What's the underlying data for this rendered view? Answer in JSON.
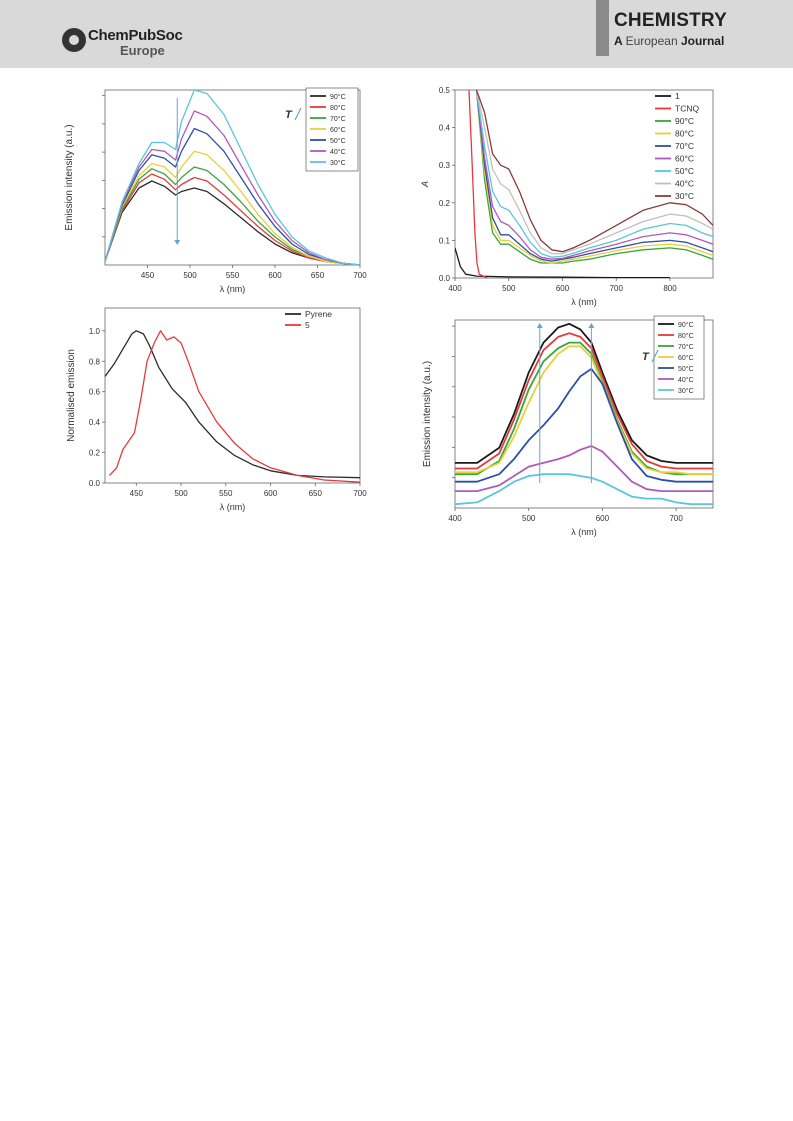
{
  "header": {
    "logo_line1": "ChemPubSoc",
    "logo_line2": "Europe",
    "journal_title": "CHEMISTRY",
    "journal_sub_a": "A",
    "journal_sub_b": "European",
    "journal_sub_c": "Journal"
  },
  "charts": {
    "ylabel_emission": "Emission intensity (a.u.)",
    "ylabel_normalised": "Normalised emission",
    "ylabel_absorbance": "A",
    "xlabel": "λ (nm)",
    "temp_symbol": "T"
  },
  "chart_data": [
    {
      "type": "line",
      "panel": "top-left",
      "ylabel": "Emission intensity (a.u.)",
      "xlabel": "λ (nm)",
      "xlim": [
        400,
        700
      ],
      "xticks": [
        450,
        500,
        550,
        600,
        650,
        700
      ],
      "ylim": [
        0,
        1
      ],
      "legend": "top-right",
      "annotation": "T",
      "x": [
        400,
        420,
        440,
        455,
        470,
        483,
        490,
        505,
        520,
        540,
        560,
        580,
        600,
        620,
        640,
        660,
        680,
        700
      ],
      "series": [
        {
          "name": "90°C",
          "color": "#2b2b2b",
          "values": [
            0.02,
            0.3,
            0.44,
            0.48,
            0.45,
            0.4,
            0.42,
            0.44,
            0.42,
            0.35,
            0.27,
            0.19,
            0.12,
            0.07,
            0.04,
            0.02,
            0.01,
            0.0
          ]
        },
        {
          "name": "80°C",
          "color": "#e63a3a",
          "values": [
            0.02,
            0.31,
            0.47,
            0.52,
            0.49,
            0.43,
            0.46,
            0.5,
            0.48,
            0.4,
            0.31,
            0.22,
            0.14,
            0.08,
            0.04,
            0.02,
            0.01,
            0.0
          ]
        },
        {
          "name": "70°C",
          "color": "#3aa63a",
          "values": [
            0.02,
            0.32,
            0.49,
            0.55,
            0.52,
            0.46,
            0.5,
            0.56,
            0.54,
            0.46,
            0.36,
            0.25,
            0.16,
            0.09,
            0.05,
            0.02,
            0.01,
            0.0
          ]
        },
        {
          "name": "60°C",
          "color": "#e6d13a",
          "values": [
            0.02,
            0.33,
            0.51,
            0.58,
            0.56,
            0.5,
            0.56,
            0.65,
            0.63,
            0.54,
            0.42,
            0.29,
            0.18,
            0.1,
            0.05,
            0.02,
            0.01,
            0.0
          ]
        },
        {
          "name": "50°C",
          "color": "#2e4fa8",
          "values": [
            0.02,
            0.34,
            0.54,
            0.63,
            0.61,
            0.56,
            0.65,
            0.78,
            0.75,
            0.65,
            0.5,
            0.35,
            0.22,
            0.12,
            0.06,
            0.03,
            0.01,
            0.0
          ]
        },
        {
          "name": "40°C",
          "color": "#b05ab8",
          "values": [
            0.02,
            0.35,
            0.56,
            0.66,
            0.65,
            0.6,
            0.72,
            0.88,
            0.85,
            0.74,
            0.57,
            0.4,
            0.25,
            0.14,
            0.07,
            0.03,
            0.01,
            0.0
          ]
        },
        {
          "name": "30°C",
          "color": "#5bc6d8",
          "values": [
            0.02,
            0.36,
            0.58,
            0.7,
            0.7,
            0.66,
            0.82,
            1.0,
            0.98,
            0.86,
            0.66,
            0.46,
            0.29,
            0.16,
            0.08,
            0.04,
            0.01,
            0.0
          ]
        }
      ]
    },
    {
      "type": "line",
      "panel": "top-right",
      "ylabel": "A",
      "xlabel": "λ (nm)",
      "xlim": [
        400,
        880
      ],
      "xticks": [
        400,
        500,
        600,
        700,
        800
      ],
      "ylim": [
        0,
        0.5
      ],
      "yticks": [
        "0.0",
        "0.1",
        "0.2",
        "0.3",
        "0.4",
        "0.5"
      ],
      "legend": "top-right",
      "x": [
        440,
        455,
        470,
        485,
        500,
        520,
        540,
        560,
        580,
        600,
        620,
        650,
        700,
        750,
        800,
        830,
        860,
        880
      ],
      "series": [
        {
          "name": "1",
          "color": "#1a1a1a",
          "x": [
            400,
            410,
            420,
            440,
            500,
            600,
            700,
            800
          ],
          "values": [
            0.08,
            0.03,
            0.01,
            0.005,
            0.003,
            0.002,
            0.001,
            0.001
          ]
        },
        {
          "name": "TCNQ",
          "color": "#e63a3a",
          "x": [
            426,
            432,
            437,
            441,
            445,
            460
          ],
          "values": [
            0.5,
            0.3,
            0.12,
            0.04,
            0.01,
            0.0
          ]
        },
        {
          "name": "90°C",
          "color": "#3aa63a",
          "values": [
            0.5,
            0.26,
            0.12,
            0.09,
            0.09,
            0.07,
            0.05,
            0.04,
            0.04,
            0.04,
            0.045,
            0.05,
            0.065,
            0.075,
            0.08,
            0.075,
            0.06,
            0.05
          ]
        },
        {
          "name": "80°C",
          "color": "#e6d13a",
          "values": [
            0.5,
            0.28,
            0.14,
            0.1,
            0.1,
            0.08,
            0.06,
            0.045,
            0.04,
            0.045,
            0.05,
            0.058,
            0.073,
            0.085,
            0.09,
            0.085,
            0.07,
            0.06
          ]
        },
        {
          "name": "70°C",
          "color": "#2e4fa8",
          "values": [
            0.5,
            0.3,
            0.16,
            0.115,
            0.115,
            0.09,
            0.065,
            0.05,
            0.045,
            0.05,
            0.055,
            0.065,
            0.08,
            0.095,
            0.1,
            0.095,
            0.08,
            0.07
          ]
        },
        {
          "name": "60°C",
          "color": "#b05ab8",
          "values": [
            0.5,
            0.32,
            0.19,
            0.15,
            0.14,
            0.11,
            0.075,
            0.055,
            0.05,
            0.052,
            0.06,
            0.072,
            0.09,
            0.11,
            0.12,
            0.115,
            0.1,
            0.09
          ]
        },
        {
          "name": "50°C",
          "color": "#5bc6d8",
          "values": [
            0.5,
            0.35,
            0.23,
            0.19,
            0.18,
            0.14,
            0.095,
            0.065,
            0.055,
            0.058,
            0.066,
            0.08,
            0.1,
            0.13,
            0.145,
            0.14,
            0.12,
            0.11
          ]
        },
        {
          "name": "40°C",
          "color": "#c0c0c0",
          "values": [
            0.5,
            0.4,
            0.29,
            0.25,
            0.235,
            0.18,
            0.12,
            0.08,
            0.065,
            0.065,
            0.075,
            0.09,
            0.12,
            0.15,
            0.17,
            0.165,
            0.145,
            0.13
          ]
        },
        {
          "name": "30°C",
          "color": "#8b3a3a",
          "values": [
            0.5,
            0.44,
            0.33,
            0.3,
            0.29,
            0.23,
            0.155,
            0.1,
            0.075,
            0.07,
            0.08,
            0.1,
            0.14,
            0.18,
            0.2,
            0.195,
            0.17,
            0.14
          ]
        }
      ]
    },
    {
      "type": "line",
      "panel": "bottom-left",
      "ylabel": "Normalised emission",
      "xlabel": "λ (nm)",
      "xlim": [
        415,
        700
      ],
      "xticks": [
        450,
        500,
        550,
        600,
        650,
        700
      ],
      "ylim": [
        0,
        1.15
      ],
      "yticks": [
        "0.0",
        "0.2",
        "0.4",
        "0.6",
        "0.8",
        "1.0"
      ],
      "legend": "top-right",
      "series": [
        {
          "name": "Pyrene",
          "color": "#2b2b2b",
          "x": [
            415,
            425,
            435,
            445,
            450,
            458,
            465,
            475,
            490,
            505,
            520,
            540,
            560,
            580,
            600,
            630,
            660,
            700
          ],
          "values": [
            0.7,
            0.78,
            0.88,
            0.98,
            1.0,
            0.98,
            0.9,
            0.76,
            0.62,
            0.53,
            0.4,
            0.27,
            0.18,
            0.12,
            0.08,
            0.05,
            0.04,
            0.035
          ]
        },
        {
          "name": "5",
          "color": "#e63a3a",
          "x": [
            420,
            428,
            435,
            442,
            448,
            455,
            462,
            470,
            477,
            484,
            492,
            500,
            508,
            520,
            540,
            560,
            580,
            600,
            630,
            660,
            700
          ],
          "values": [
            0.05,
            0.1,
            0.22,
            0.28,
            0.33,
            0.55,
            0.8,
            0.92,
            1.0,
            0.94,
            0.96,
            0.92,
            0.8,
            0.6,
            0.4,
            0.26,
            0.16,
            0.1,
            0.05,
            0.02,
            0.005
          ]
        }
      ]
    },
    {
      "type": "line",
      "panel": "bottom-right",
      "ylabel": "Emission intensity (a.u.)",
      "xlabel": "λ (nm)",
      "xlim": [
        400,
        750
      ],
      "xticks": [
        400,
        500,
        600,
        700
      ],
      "ylim": [
        0,
        1
      ],
      "legend": "top-right",
      "annotation": "T",
      "x": [
        400,
        430,
        460,
        480,
        500,
        520,
        540,
        555,
        570,
        585,
        600,
        620,
        640,
        660,
        680,
        700,
        720,
        750
      ],
      "series": [
        {
          "name": "90°C",
          "color": "#1a1a1a",
          "values": [
            0.24,
            0.24,
            0.32,
            0.5,
            0.72,
            0.88,
            0.96,
            0.98,
            0.95,
            0.88,
            0.72,
            0.52,
            0.36,
            0.28,
            0.25,
            0.24,
            0.24,
            0.24
          ]
        },
        {
          "name": "80°C",
          "color": "#e63a3a",
          "values": [
            0.21,
            0.21,
            0.29,
            0.47,
            0.68,
            0.84,
            0.91,
            0.93,
            0.91,
            0.85,
            0.7,
            0.5,
            0.34,
            0.25,
            0.22,
            0.21,
            0.21,
            0.21
          ]
        },
        {
          "name": "70°C",
          "color": "#3aa63a",
          "values": [
            0.18,
            0.18,
            0.25,
            0.42,
            0.63,
            0.78,
            0.85,
            0.88,
            0.88,
            0.82,
            0.67,
            0.47,
            0.3,
            0.22,
            0.19,
            0.18,
            0.18,
            0.18
          ]
        },
        {
          "name": "60°C",
          "color": "#e6d13a",
          "values": [
            0.19,
            0.19,
            0.24,
            0.38,
            0.56,
            0.72,
            0.82,
            0.86,
            0.86,
            0.8,
            0.66,
            0.46,
            0.29,
            0.21,
            0.19,
            0.19,
            0.18,
            0.18
          ]
        },
        {
          "name": "50°C",
          "color": "#2e4fa8",
          "values": [
            0.14,
            0.14,
            0.18,
            0.26,
            0.36,
            0.44,
            0.53,
            0.62,
            0.7,
            0.74,
            0.66,
            0.45,
            0.26,
            0.17,
            0.15,
            0.14,
            0.14,
            0.14
          ]
        },
        {
          "name": "40°C",
          "color": "#b05ab8",
          "values": [
            0.09,
            0.09,
            0.12,
            0.17,
            0.22,
            0.24,
            0.26,
            0.28,
            0.31,
            0.33,
            0.3,
            0.22,
            0.14,
            0.1,
            0.09,
            0.09,
            0.09,
            0.09
          ]
        },
        {
          "name": "30°C",
          "color": "#5bc6d8",
          "values": [
            0.02,
            0.03,
            0.09,
            0.14,
            0.17,
            0.18,
            0.18,
            0.18,
            0.17,
            0.16,
            0.14,
            0.1,
            0.06,
            0.05,
            0.05,
            0.03,
            0.02,
            0.02
          ]
        }
      ]
    }
  ]
}
